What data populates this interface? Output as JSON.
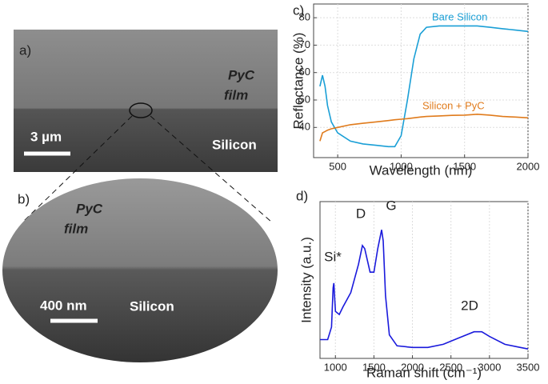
{
  "chart_data": [
    {
      "type": "line",
      "panel": "c)",
      "xlabel": "Wavelength (nm)",
      "ylabel": "Reflectance (%)",
      "x": [
        360,
        380,
        400,
        420,
        450,
        500,
        600,
        700,
        800,
        900,
        950,
        1000,
        1050,
        1100,
        1150,
        1200,
        1300,
        1400,
        1500,
        1600,
        1700,
        1800,
        1900,
        2000
      ],
      "series": [
        {
          "name": "Bare Silicon",
          "color": "#1a9fd6",
          "values": [
            55,
            59,
            55,
            48,
            42,
            38,
            35,
            34,
            33.5,
            33,
            33,
            37,
            50,
            65,
            74,
            76.5,
            77,
            77,
            77,
            77,
            76.5,
            76,
            75.5,
            75
          ]
        },
        {
          "name": "Silicon + PyC",
          "color": "#e07b1c",
          "values": [
            35,
            38,
            38.5,
            39,
            39.5,
            40,
            41,
            41.5,
            42,
            42.5,
            42.8,
            43,
            43.2,
            43.5,
            43.8,
            44,
            44.2,
            44.4,
            44.5,
            44.8,
            44.5,
            44,
            43.8,
            43.5
          ]
        }
      ],
      "xlim": [
        310,
        2000
      ],
      "xticks": [
        500,
        1000,
        1500,
        2000
      ],
      "ylim": [
        29,
        85
      ],
      "yticks": [
        40,
        50,
        60,
        70,
        80
      ],
      "grid": true
    },
    {
      "type": "line",
      "panel": "d)",
      "xlabel": "Raman shift (cm⁻¹)",
      "ylabel": "Intensity (a.u.)",
      "x": [
        800,
        900,
        950,
        970,
        980,
        1000,
        1050,
        1100,
        1200,
        1300,
        1350,
        1380,
        1450,
        1500,
        1550,
        1600,
        1620,
        1650,
        1700,
        1800,
        2000,
        2200,
        2400,
        2600,
        2800,
        2900,
        3000,
        3200,
        3400,
        3500
      ],
      "series": [
        {
          "name": null,
          "color": "#1a1adc",
          "values": [
            12,
            12,
            20,
            45,
            48,
            30,
            28,
            33,
            42,
            60,
            72,
            70,
            55,
            55,
            70,
            82,
            75,
            40,
            15,
            8,
            7,
            7,
            9,
            13,
            17,
            17,
            14,
            9,
            7,
            6
          ]
        }
      ],
      "annotations": [
        "Si*",
        "D",
        "G",
        "2D"
      ],
      "xlim": [
        800,
        3500
      ],
      "xticks": [
        1000,
        1500,
        2000,
        2500,
        3000,
        3500
      ],
      "ylim": [
        0,
        100
      ],
      "grid": true
    }
  ],
  "sem_a": {
    "label": "a)",
    "film_line1": "PyC",
    "film_line2": "film",
    "scale": "3 µm",
    "substrate": "Silicon"
  },
  "sem_b": {
    "label": "b)",
    "film_line1": "PyC",
    "film_line2": "film",
    "scale": "400 nm",
    "substrate": "Silicon"
  }
}
